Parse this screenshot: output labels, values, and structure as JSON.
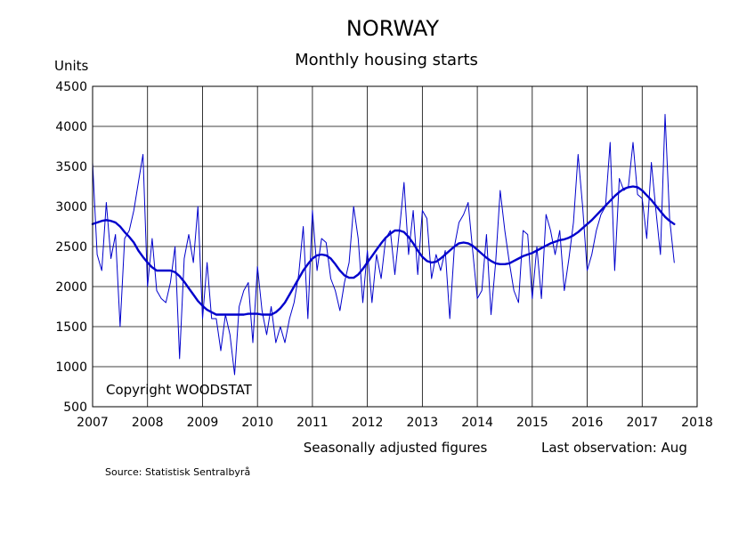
{
  "chart_data": {
    "type": "line",
    "title": "NORWAY",
    "subtitle": "Monthly housing starts",
    "ylabel": "Units",
    "xlabel": "",
    "xlim": [
      2007,
      2018
    ],
    "ylim": [
      500,
      4500
    ],
    "x_ticks": [
      2007,
      2008,
      2009,
      2010,
      2011,
      2012,
      2013,
      2014,
      2015,
      2016,
      2017,
      2018
    ],
    "y_ticks": [
      500,
      1000,
      1500,
      2000,
      2500,
      3000,
      3500,
      4000,
      4500
    ],
    "grid": true,
    "colors": {
      "series": "#0000cc",
      "axis": "#000000"
    },
    "series": [
      {
        "style": "thin",
        "start": 2007.0,
        "step_months": 1,
        "values": [
          3550,
          2400,
          2200,
          3050,
          2350,
          2650,
          1500,
          2600,
          2700,
          2950,
          3300,
          3650,
          2000,
          2600,
          1950,
          1850,
          1800,
          2050,
          2500,
          1100,
          2350,
          2650,
          2300,
          3000,
          1600,
          2300,
          1600,
          1600,
          1200,
          1650,
          1400,
          900,
          1750,
          1950,
          2050,
          1300,
          2250,
          1700,
          1400,
          1750,
          1300,
          1500,
          1300,
          1600,
          1800,
          2150,
          2750,
          1600,
          2950,
          2200,
          2600,
          2550,
          2100,
          1950,
          1700,
          2050,
          2300,
          3000,
          2600,
          1800,
          2450,
          1800,
          2400,
          2100,
          2600,
          2700,
          2150,
          2700,
          3300,
          2400,
          2950,
          2150,
          2950,
          2850,
          2100,
          2400,
          2200,
          2450,
          1600,
          2500,
          2800,
          2900,
          3050,
          2450,
          1850,
          1950,
          2650,
          1650,
          2300,
          3200,
          2700,
          2300,
          1950,
          1800,
          2700,
          2650,
          1850,
          2500,
          1850,
          2900,
          2700,
          2400,
          2700,
          1950,
          2350,
          2800,
          3650,
          3000,
          2200,
          2400,
          2700,
          2900,
          3000,
          3800,
          2200,
          3350,
          3200,
          3250,
          3800,
          3150,
          3100,
          2600,
          3550,
          2950,
          2400,
          4150,
          2850,
          2300
        ]
      },
      {
        "style": "thick",
        "start": 2007.0,
        "step_months": 1,
        "values": [
          2780,
          2800,
          2820,
          2830,
          2820,
          2800,
          2750,
          2680,
          2620,
          2550,
          2450,
          2370,
          2300,
          2240,
          2200,
          2200,
          2200,
          2200,
          2180,
          2130,
          2060,
          1980,
          1900,
          1820,
          1760,
          1710,
          1680,
          1650,
          1650,
          1650,
          1650,
          1650,
          1650,
          1650,
          1660,
          1660,
          1660,
          1650,
          1650,
          1650,
          1680,
          1730,
          1800,
          1900,
          2000,
          2100,
          2200,
          2280,
          2350,
          2390,
          2400,
          2390,
          2350,
          2280,
          2200,
          2140,
          2110,
          2110,
          2150,
          2220,
          2300,
          2380,
          2460,
          2540,
          2610,
          2660,
          2700,
          2700,
          2680,
          2620,
          2540,
          2450,
          2370,
          2320,
          2300,
          2310,
          2350,
          2400,
          2450,
          2500,
          2540,
          2550,
          2540,
          2510,
          2460,
          2410,
          2360,
          2320,
          2290,
          2280,
          2280,
          2290,
          2320,
          2350,
          2380,
          2400,
          2420,
          2450,
          2480,
          2510,
          2540,
          2560,
          2580,
          2590,
          2610,
          2640,
          2680,
          2730,
          2780,
          2830,
          2890,
          2950,
          3010,
          3070,
          3130,
          3180,
          3220,
          3240,
          3250,
          3240,
          3200,
          3140,
          3080,
          3010,
          2940,
          2870,
          2820,
          2780
        ]
      }
    ]
  },
  "annotations": {
    "copyright": "Copyright WOODSTAT",
    "note": "Seasonally adjusted figures",
    "last_observation": "Last observation: Aug",
    "source": "Source: Statistisk Sentralbyrå"
  }
}
